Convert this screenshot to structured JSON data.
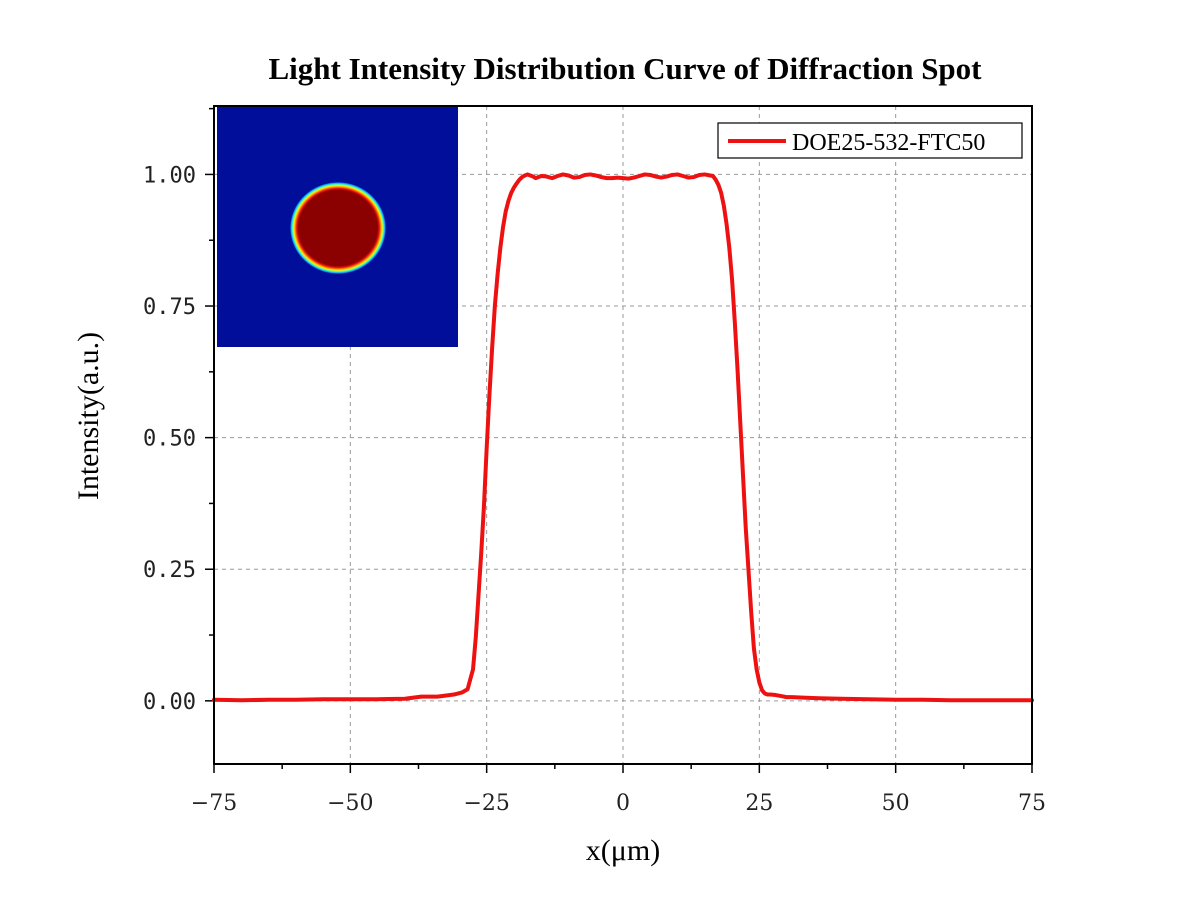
{
  "chart_data": {
    "type": "line",
    "title": "Light Intensity Distribution Curve of Diffraction Spot",
    "xlabel": "x(μm)",
    "ylabel": "Intensity(a.u.)",
    "xlim": [
      -75,
      75
    ],
    "ylim": [
      -0.12,
      1.13
    ],
    "xticks": [
      -75,
      -50,
      -25,
      0,
      25,
      50,
      75
    ],
    "xtick_labels": [
      "−75",
      "−50",
      "−25",
      "0",
      "25",
      "50",
      "75"
    ],
    "yticks": [
      0,
      0.25,
      0.5,
      0.75,
      1.0
    ],
    "ytick_labels": [
      "0.00",
      "0.25",
      "0.50",
      "0.75",
      "1.00"
    ],
    "grid": true,
    "legend_position": "top-right",
    "series": [
      {
        "name": "DOE25-532-FTC50",
        "color": "#ee1111",
        "x": [
          -75,
          -70,
          -65,
          -60,
          -55,
          -50,
          -45,
          -40,
          -37,
          -34,
          -31,
          -29.5,
          -28.5,
          -27.5,
          -27,
          -26.5,
          -26,
          -25.5,
          -25,
          -24.5,
          -24,
          -23.5,
          -23,
          -22.5,
          -22,
          -21.5,
          -21,
          -20.5,
          -20,
          -19.5,
          -19,
          -18.5,
          -18,
          -17.5,
          -17,
          -16.5,
          -16,
          -15,
          -14,
          -13,
          -12,
          -11,
          -10,
          -9,
          -8,
          -7,
          -6,
          -5,
          -4,
          -3,
          -2,
          -1,
          0,
          1,
          2,
          3,
          4,
          5,
          6,
          7,
          8,
          9,
          10,
          11,
          12,
          13,
          14,
          15,
          16,
          16.5,
          17,
          17.5,
          18,
          18.5,
          19,
          19.5,
          20,
          20.5,
          21,
          21.5,
          22,
          22.5,
          23,
          23.5,
          24,
          24.5,
          25,
          25.5,
          26,
          26.5,
          27,
          28,
          29,
          30,
          31,
          33,
          36,
          40,
          45,
          50,
          55,
          60,
          65,
          70,
          75
        ],
        "values": [
          0.002,
          0.001,
          0.002,
          0.002,
          0.003,
          0.003,
          0.003,
          0.004,
          0.008,
          0.008,
          0.012,
          0.016,
          0.022,
          0.06,
          0.12,
          0.2,
          0.28,
          0.37,
          0.48,
          0.58,
          0.67,
          0.75,
          0.81,
          0.86,
          0.9,
          0.93,
          0.95,
          0.965,
          0.975,
          0.983,
          0.99,
          0.995,
          0.998,
          1.0,
          0.998,
          0.996,
          0.993,
          0.997,
          0.996,
          0.993,
          0.997,
          1.0,
          0.998,
          0.994,
          0.995,
          0.999,
          1.0,
          0.998,
          0.995,
          0.993,
          0.993,
          0.994,
          0.993,
          0.992,
          0.994,
          0.997,
          1.0,
          0.999,
          0.996,
          0.994,
          0.996,
          0.999,
          1.0,
          0.997,
          0.994,
          0.995,
          0.999,
          1.0,
          0.998,
          0.997,
          0.99,
          0.98,
          0.965,
          0.94,
          0.905,
          0.86,
          0.8,
          0.72,
          0.63,
          0.53,
          0.43,
          0.33,
          0.25,
          0.17,
          0.1,
          0.06,
          0.035,
          0.02,
          0.014,
          0.012,
          0.012,
          0.011,
          0.009,
          0.007,
          0.007,
          0.006,
          0.005,
          0.004,
          0.003,
          0.002,
          0.002,
          0.001,
          0.001,
          0.001,
          0.001
        ]
      }
    ]
  }
}
